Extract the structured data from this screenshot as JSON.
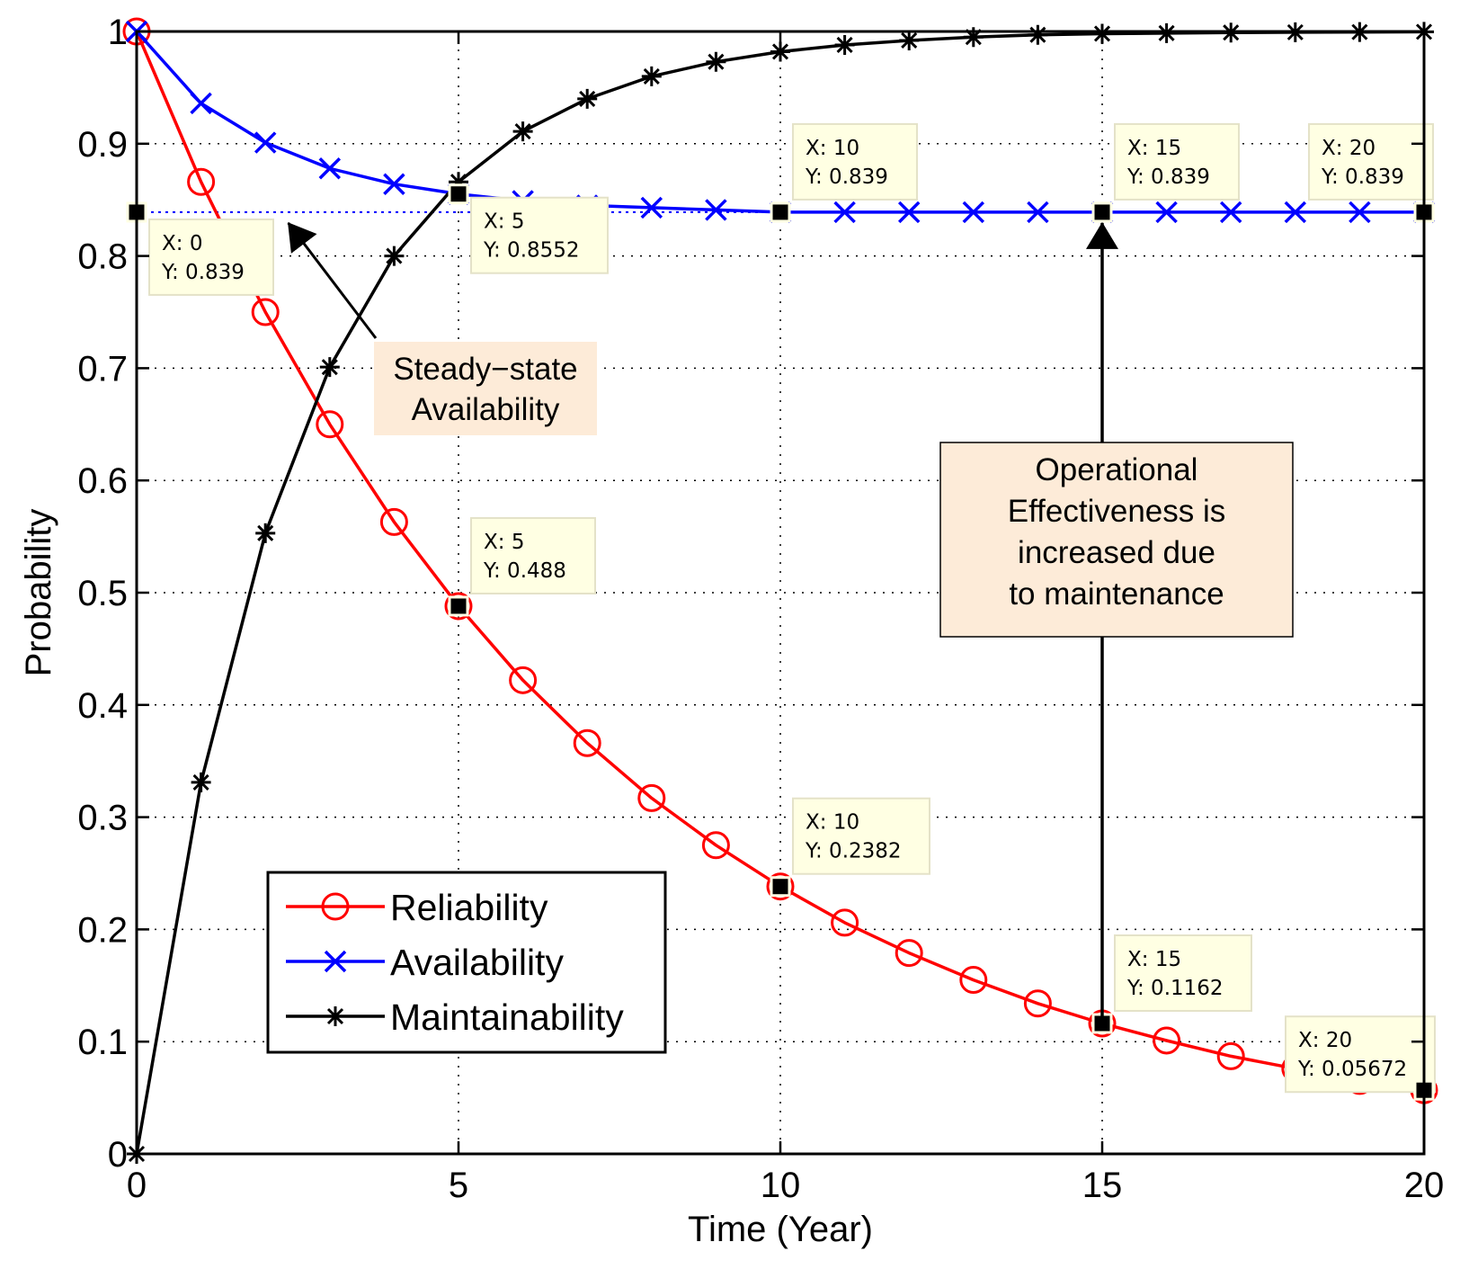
{
  "chart_data": {
    "type": "line",
    "title": "",
    "xlabel": "Time (Year)",
    "ylabel": "Probability",
    "xlim": [
      0,
      20
    ],
    "ylim": [
      0,
      1
    ],
    "xticks": [
      0,
      5,
      10,
      15,
      20
    ],
    "xtick_labels": [
      "0",
      "5",
      "10",
      "15",
      "20"
    ],
    "yticks": [
      0,
      0.1,
      0.2,
      0.3,
      0.4,
      0.5,
      0.6,
      0.7,
      0.8,
      0.9,
      1
    ],
    "ytick_labels": [
      "0",
      "0.1",
      "0.2",
      "0.3",
      "0.4",
      "0.5",
      "0.6",
      "0.7",
      "0.8",
      "0.9",
      "1"
    ],
    "grid": true,
    "legend_position": "bottom-left",
    "x": [
      0,
      1,
      2,
      3,
      4,
      5,
      6,
      7,
      8,
      9,
      10,
      11,
      12,
      13,
      14,
      15,
      16,
      17,
      18,
      19,
      20
    ],
    "series": [
      {
        "name": "Reliability",
        "color": "#ff0000",
        "marker": "circle",
        "values": [
          1.0,
          0.866,
          0.75,
          0.65,
          0.563,
          0.488,
          0.422,
          0.366,
          0.317,
          0.275,
          0.2382,
          0.206,
          0.179,
          0.155,
          0.134,
          0.1162,
          0.101,
          0.087,
          0.076,
          0.065,
          0.05672
        ]
      },
      {
        "name": "Availability",
        "color": "#0000ff",
        "marker": "x",
        "values": [
          1.0,
          0.936,
          0.901,
          0.878,
          0.864,
          0.8552,
          0.849,
          0.845,
          0.843,
          0.841,
          0.839,
          0.839,
          0.839,
          0.839,
          0.839,
          0.839,
          0.839,
          0.839,
          0.839,
          0.839,
          0.839
        ]
      },
      {
        "name": "Maintainability",
        "color": "#000000",
        "marker": "asterisk",
        "values": [
          0.0,
          0.331,
          0.553,
          0.701,
          0.8,
          0.866,
          0.911,
          0.94,
          0.96,
          0.973,
          0.982,
          0.988,
          0.992,
          0.995,
          0.997,
          0.998,
          0.9985,
          0.999,
          0.9993,
          0.9995,
          0.9997
        ]
      }
    ],
    "steady_state_line": {
      "y": 0.839,
      "x_range": [
        0,
        20
      ],
      "color": "#0000ff",
      "style": "dotted"
    },
    "datatips": [
      {
        "x": 0,
        "y": 0.839,
        "label_x": "X: 0",
        "label_y": "Y: 0.839"
      },
      {
        "x": 5,
        "y": 0.8552,
        "label_x": "X: 5",
        "label_y": "Y: 0.8552"
      },
      {
        "x": 10,
        "y": 0.839,
        "label_x": "X: 10",
        "label_y": "Y: 0.839"
      },
      {
        "x": 15,
        "y": 0.839,
        "label_x": "X: 15",
        "label_y": "Y: 0.839"
      },
      {
        "x": 20,
        "y": 0.839,
        "label_x": "X: 20",
        "label_y": "Y: 0.839"
      },
      {
        "x": 5,
        "y": 0.488,
        "label_x": "X: 5",
        "label_y": "Y: 0.488"
      },
      {
        "x": 10,
        "y": 0.2382,
        "label_x": "X: 10",
        "label_y": "Y: 0.2382"
      },
      {
        "x": 15,
        "y": 0.1162,
        "label_x": "X: 15",
        "label_y": "Y: 0.1162"
      },
      {
        "x": 20,
        "y": 0.05672,
        "label_x": "X: 20",
        "label_y": "Y: 0.05672"
      }
    ],
    "annotations": [
      {
        "lines": [
          "Steady−state",
          "Availability"
        ],
        "arrow_to": {
          "x": 2.3,
          "y": 0.839
        }
      },
      {
        "lines": [
          "Operational",
          "Effectiveness is",
          "increased due",
          "to maintenance"
        ],
        "arrow_to": {
          "x": 15,
          "y": 0.839
        }
      }
    ]
  }
}
